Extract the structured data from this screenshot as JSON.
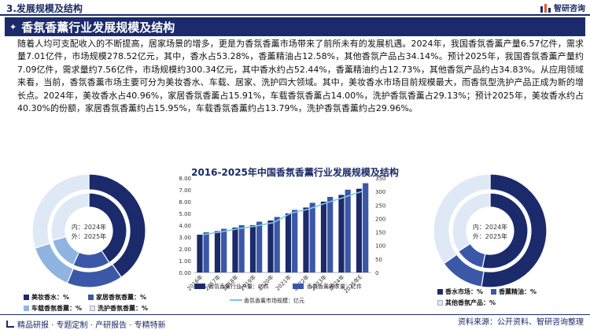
{
  "header": {
    "section": "3.发展规模及结构",
    "brand": "智研咨询"
  },
  "banner": {
    "title": "香氛香薰行业发展规模及结构"
  },
  "paragraph": "随着人均可支配收入的不断提高，居家场景的增多，更是为香氛香薰市场带来了前所未有的发展机遇。2024年，我国香氛香薰产量6.57亿件，需求量7.01亿件，市场规模278.52亿元，其中，香水占53.28%，香薰精油占12.58%，其他香氛产品占34.14%。预计2025年，我国香氛香薰产量约7.09亿件，需求量约7.56亿件，市场规模约300.34亿元，其中香水约占52.44%，香薰精油约占12.73%，其他香氛产品约占34.83%。从应用领域来看，当前，香氛香薰市场主要可分为美妆香水、车载、居家、洗护四大领域。其中，美妆香水市场目前规模最大，而香氛型洗护产品正成为新的增长点。2024年，美妆香水占40.96%，家居香氛香薰占15.91%，车载香氛香薰占14.00%，洗护香氛香薰占29.13%；预计2025年，美妆香水约占40.30%的份额，家居香氛香薰约占15.95%，车载香氛香薰约占13.79%，洗护香氛香薰约占29.96%。",
  "chart_data": [
    {
      "type": "bar",
      "title": "2016-2025年中国香氛香薰行业发展规模及结构",
      "categories": [
        "2016年",
        "2017年",
        "2018年",
        "2019年",
        "2020年",
        "2021年",
        "2022年",
        "2023年",
        "2024年",
        "2025年E"
      ],
      "series": [
        {
          "name": "香氛香薰行业产量：亿件",
          "values": [
            3.2,
            3.5,
            3.8,
            4.0,
            4.4,
            5.0,
            5.5,
            6.0,
            6.57,
            7.09
          ],
          "color": "#1b2a6b"
        },
        {
          "name": "香氛香薰需求量：亿件",
          "values": [
            3.4,
            3.7,
            4.0,
            4.3,
            4.7,
            5.3,
            5.9,
            6.4,
            7.01,
            7.56
          ],
          "color": "#3b57a8"
        },
        {
          "name": "香氛香薰市场规模：亿元",
          "values": [
            140,
            150,
            162,
            172,
            185,
            220,
            235,
            258,
            278.52,
            300.34
          ],
          "color": "#7ec6e8",
          "axis": "right"
        }
      ],
      "yleft": {
        "min": 0,
        "max": 8,
        "ticks": [
          "0.00",
          "1.00",
          "2.00",
          "3.00",
          "4.00",
          "5.00",
          "6.00",
          "7.00",
          "8.00"
        ]
      },
      "yright": {
        "min": 0,
        "max": 350,
        "ticks": [
          "0",
          "50",
          "100",
          "150",
          "200",
          "250",
          "300",
          "350"
        ]
      }
    },
    {
      "type": "pie",
      "center_label": [
        "内：2024年",
        "外：2025年"
      ],
      "inner": [
        40.96,
        15.91,
        14.0,
        29.13
      ],
      "outer": [
        40.3,
        15.95,
        13.79,
        29.96
      ],
      "colors": [
        "#1b2a6b",
        "#3b57a8",
        "#8fb4e0",
        "#dfe9f6"
      ],
      "legend": [
        "美妆香水：%",
        "家居香氛香薰：%",
        "车载香氛香薰：%",
        "洗护香氛香薰：%"
      ]
    },
    {
      "type": "pie",
      "center_label": [
        "内：2024年",
        "外：2025年"
      ],
      "inner": [
        53.28,
        12.58,
        34.14
      ],
      "outer": [
        52.44,
        12.73,
        34.83
      ],
      "colors": [
        "#1b2a6b",
        "#3b57a8",
        "#dfe9f6"
      ],
      "legend": [
        "香水市场：%",
        "香薰精油：%",
        "其他香氛产品：%"
      ]
    }
  ],
  "footer": {
    "left": "精品研报 · 专题定制 · 产研报告 · 专精特新",
    "right": "资料来源：公开资料、智研咨询整理"
  }
}
